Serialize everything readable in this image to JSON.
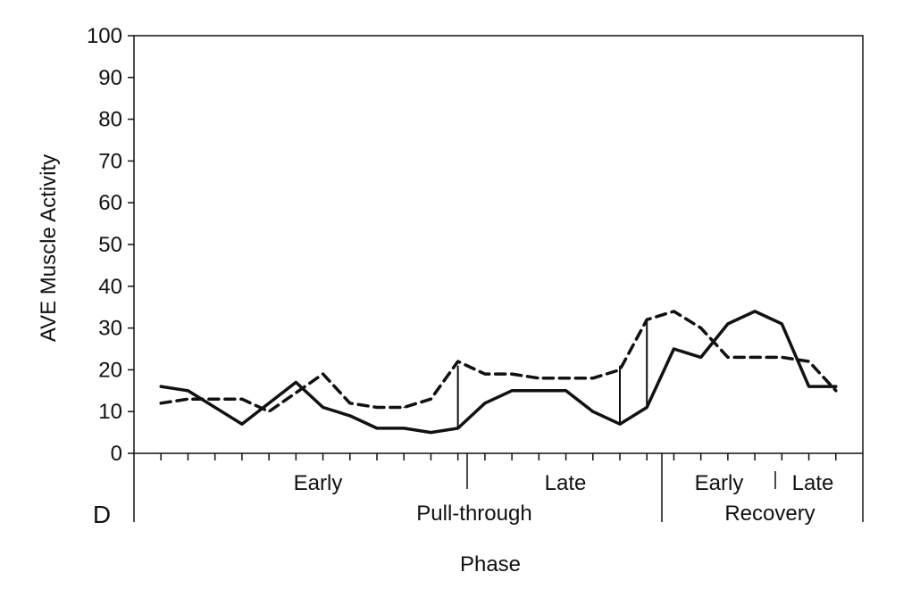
{
  "chart_data": {
    "type": "line",
    "panel_label": "D",
    "title": "",
    "xlabel": "Phase",
    "ylabel": "AVE Muscle Activity",
    "ylim": [
      0,
      100
    ],
    "yticks": [
      0,
      10,
      20,
      30,
      40,
      50,
      60,
      70,
      80,
      90,
      100
    ],
    "grid": false,
    "legend": "none",
    "x_tick_count": 27,
    "phases": {
      "sub_labels": [
        "Early",
        "Late",
        "Early",
        "Late"
      ],
      "group_labels": [
        "Pull-through",
        "Recovery"
      ]
    },
    "series": [
      {
        "line_style": "solid",
        "color": "#111111",
        "x": [
          1,
          2,
          4,
          6,
          7,
          8,
          9,
          10,
          11,
          12,
          13,
          14,
          15,
          16,
          17,
          18,
          19,
          20,
          21,
          22,
          23,
          24,
          25,
          26
        ],
        "values": [
          16,
          15,
          7,
          17,
          11,
          9,
          6,
          6,
          5,
          6,
          12,
          15,
          15,
          15,
          10,
          7,
          11,
          25,
          23,
          31,
          34,
          31,
          16,
          16
        ]
      },
      {
        "line_style": "dashed",
        "color": "#111111",
        "x": [
          1,
          2,
          4,
          5,
          7,
          8,
          9,
          10,
          11,
          12,
          13,
          14,
          15,
          16,
          17,
          18,
          19,
          20,
          21,
          22,
          23,
          24,
          25,
          26
        ],
        "values": [
          12,
          13,
          13,
          10,
          19,
          12,
          11,
          11,
          13,
          22,
          19,
          19,
          18,
          18,
          18,
          20,
          32,
          34,
          30,
          23,
          23,
          23,
          22,
          15
        ]
      }
    ],
    "vertical_markers": [
      {
        "x": 12,
        "from": 6,
        "to": 21
      },
      {
        "x": 18,
        "from": 7,
        "to": 21
      },
      {
        "x": 19,
        "from": 11,
        "to": 32
      }
    ]
  }
}
